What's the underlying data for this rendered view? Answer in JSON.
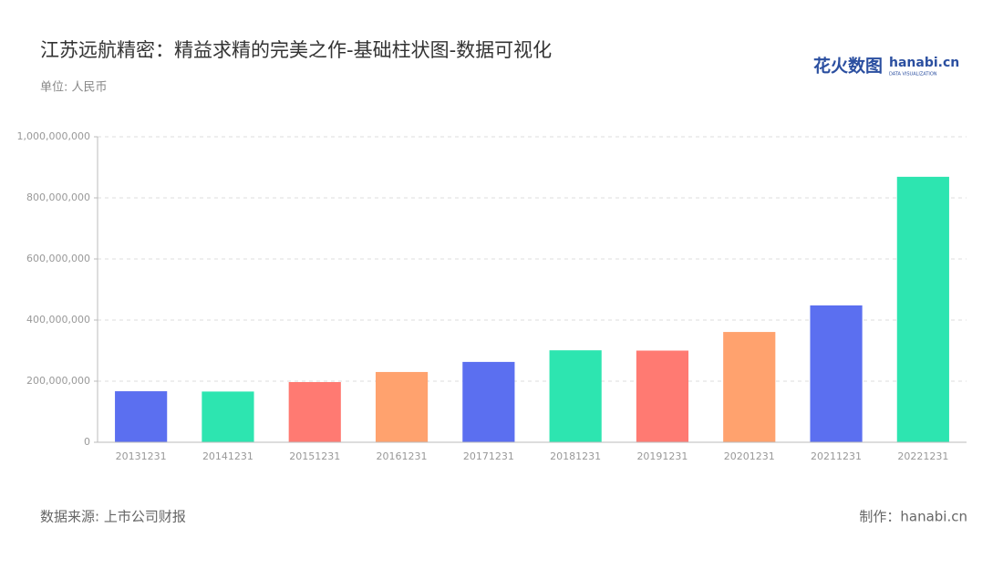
{
  "chart_data": {
    "type": "bar",
    "title": "江苏远航精密：精益求精的完美之作-基础柱状图-数据可视化",
    "subtitle": "单位: 人民币",
    "source": "数据来源: 上市公司财报",
    "credit": "制作：hanabi.cn",
    "logo": {
      "cn": "花火数图",
      "en": "hanabi.cn",
      "tagline": "DATA VISUALIZATION"
    },
    "categories": [
      "20131231",
      "20141231",
      "20151231",
      "20161231",
      "20171231",
      "20181231",
      "20191231",
      "20201231",
      "20211231",
      "20221231"
    ],
    "values": [
      167000000,
      166000000,
      197000000,
      230000000,
      263000000,
      301000000,
      300000000,
      361000000,
      448000000,
      869000000
    ],
    "colors": [
      "#5b6ff0",
      "#2de5b0",
      "#ff7a72",
      "#ffa26e",
      "#5b6ff0",
      "#2de5b0",
      "#ff7a72",
      "#ffa26e",
      "#5b6ff0",
      "#2de5b0"
    ],
    "ylim": [
      0,
      1000000000
    ],
    "yticks": [
      0,
      {
        "value": 200000000,
        "label": "200,000,000"
      },
      {
        "value": 400000000,
        "label": "400,000,000"
      },
      {
        "value": 600000000,
        "label": "600,000,000"
      },
      {
        "value": 800000000,
        "label": "800,000,000"
      },
      {
        "value": 1000000000,
        "label": "1,000,000,000"
      }
    ],
    "grid": true
  }
}
